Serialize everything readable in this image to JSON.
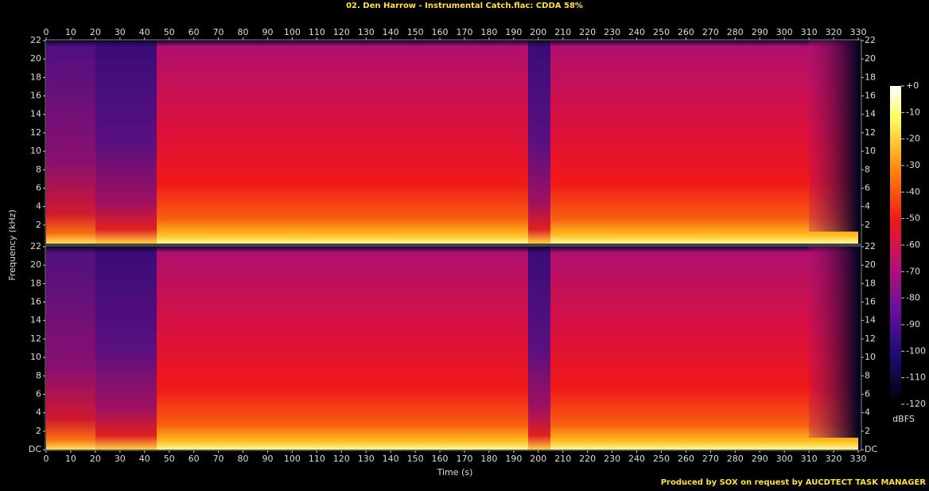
{
  "chart_data": {
    "type": "spectrogram",
    "title": "02. Den Harrow - Instrumental Catch.flac: CDDA 58%",
    "x_label": "Time (s)",
    "y_label": "Frequency (kHz)",
    "colorbar_label": "dBFS",
    "footer": "Produced by SOX on request by AUCDTECT TASK MANAGER",
    "xlim": [
      0,
      330
    ],
    "xticks": [
      0,
      10,
      20,
      30,
      40,
      50,
      60,
      70,
      80,
      90,
      100,
      110,
      120,
      130,
      140,
      150,
      160,
      170,
      180,
      190,
      200,
      210,
      220,
      230,
      240,
      250,
      260,
      270,
      280,
      290,
      300,
      310,
      320,
      330
    ],
    "panels": [
      {
        "ylim": [
          0,
          22
        ],
        "yticks": [
          2,
          4,
          6,
          8,
          10,
          12,
          14,
          16,
          18,
          20,
          22
        ]
      },
      {
        "ylim": [
          0,
          22
        ],
        "yticks": [
          {
            "value": 0,
            "label": "DC"
          },
          2,
          4,
          6,
          8,
          10,
          12,
          14,
          16,
          18,
          20,
          22
        ]
      }
    ],
    "clim": [
      -120,
      0
    ],
    "cticks": [
      {
        "value": 0,
        "label": "+0"
      },
      -10,
      -20,
      -30,
      -40,
      -50,
      -60,
      -70,
      -80,
      -90,
      -100,
      -110,
      -120
    ]
  }
}
